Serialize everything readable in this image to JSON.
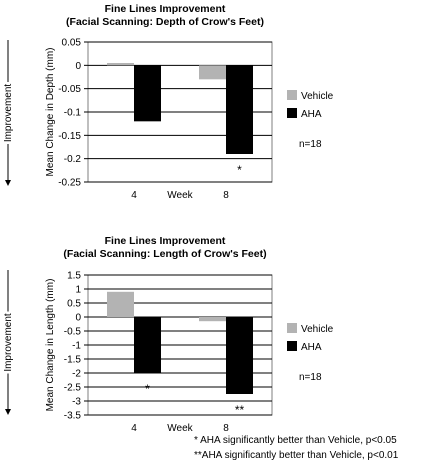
{
  "colors": {
    "vehicle": "#b3b3b3",
    "aha": "#000000",
    "grid": "#000000",
    "plot_border": "#7f7f7f"
  },
  "improvement_label": "Improvement",
  "footnotes": [
    "*  AHA significantly better than Vehicle, p<0.05",
    "**AHA significantly better than Vehicle, p<0.01"
  ],
  "chart_data": [
    {
      "type": "bar",
      "title": "Fine Lines Improvement",
      "subtitle": "(Facial Scanning: Depth of Crow's Feet)",
      "xlabel": "Week",
      "ylabel": "Mean Change in Depth (mm)",
      "categories": [
        "4",
        "8"
      ],
      "series": [
        {
          "name": "Vehicle",
          "values": [
            0.005,
            -0.03
          ]
        },
        {
          "name": "AHA",
          "values": [
            -0.12,
            -0.19
          ]
        }
      ],
      "significance": [
        "",
        "*"
      ],
      "ylim": [
        -0.25,
        0.05
      ],
      "yticks": [
        0.05,
        0,
        -0.05,
        -0.1,
        -0.15,
        -0.2,
        -0.25
      ],
      "ytick_labels": [
        "0.05",
        "0",
        "-0.05",
        "-0.1",
        "-0.15",
        "-0.2",
        "-0.25"
      ],
      "grid": true,
      "legend": "right",
      "n_label": "n=18"
    },
    {
      "type": "bar",
      "title": "Fine Lines Improvement",
      "subtitle": "(Facial Scanning: Length of Crow's Feet)",
      "xlabel": "Week",
      "ylabel": "Mean Change in Length (mm)",
      "categories": [
        "4",
        "8"
      ],
      "series": [
        {
          "name": "Vehicle",
          "values": [
            0.9,
            -0.15
          ]
        },
        {
          "name": "AHA",
          "values": [
            -2.0,
            -2.75
          ]
        }
      ],
      "significance": [
        "*",
        "**"
      ],
      "ylim": [
        -3.5,
        1.5
      ],
      "yticks": [
        1.5,
        1,
        0.5,
        0,
        -0.5,
        -1,
        -1.5,
        -2,
        -2.5,
        -3,
        -3.5
      ],
      "ytick_labels": [
        "1.5",
        "1",
        "0.5",
        "0",
        "-0.5",
        "-1",
        "-1.5",
        "-2",
        "-2.5",
        "-3",
        "-3.5"
      ],
      "grid": true,
      "legend": "right",
      "n_label": "n=18"
    }
  ]
}
